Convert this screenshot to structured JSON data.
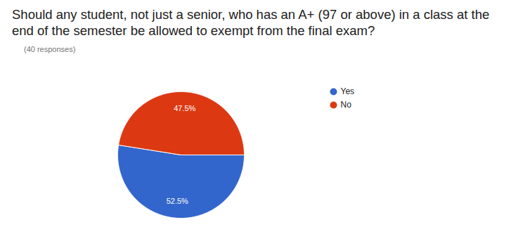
{
  "chart_data": {
    "type": "pie",
    "title": "Should any student, not just a senior, who has an A+ (97 or above) in a class at the end of the semester be allowed to exempt from the final exam?",
    "subtitle": "(40 responses)",
    "categories": [
      "Yes",
      "No"
    ],
    "values": [
      52.5,
      47.5
    ],
    "value_labels": [
      "52.5%",
      "47.5%"
    ],
    "colors": [
      "#3366cc",
      "#dc3912"
    ],
    "data_labels": true,
    "legend": "right"
  }
}
